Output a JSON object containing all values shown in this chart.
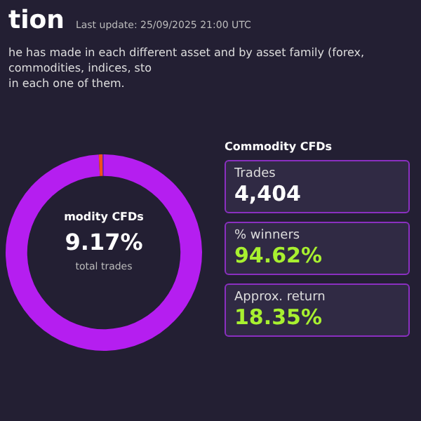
{
  "chart_data": {
    "type": "donut",
    "title": "tion",
    "subtitle": "Last update: 25/09/2025 21:00 UTC",
    "categories": [
      null,
      null,
      null
    ],
    "values": [
      99.17,
      0.63,
      0.2
    ],
    "colors": [
      "#b51ef0",
      "#f0501e",
      "#6a1fd0"
    ],
    "legend": false,
    "annotations": [
      "he has made in each different asset and by asset family (forex, commodities, indices, sto",
      "in each one of them.",
      "modity CFDs",
      "9.17%",
      "total trades",
      "Commodity CFDs",
      "Trades",
      "4,404",
      "% winners",
      "94.62%",
      "Approx. return",
      "18.35%"
    ]
  }
}
